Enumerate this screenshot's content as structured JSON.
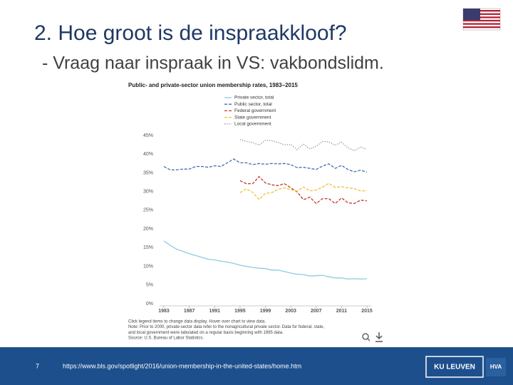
{
  "slide": {
    "title": "2. Hoe groot is de inspraakkloof?",
    "subtitle": " - Vraag naar inspraak in VS: vakbondslidm.",
    "page_number": "7",
    "url": "https://www.bls.gov/spotlight/2016/union-membership-in-the-united-states/home.htm",
    "logo": "KU LEUVEN",
    "logo2": "HVA"
  },
  "chart_data": {
    "type": "line",
    "title": "Public- and private-sector union membership rates, 1983–2015",
    "notes": [
      "Click legend items to change data display. Hover over chart to view data.",
      "Note: Prior to 2000, private-sector data refer to the nonagricultural private sector. Data for federal, state,",
      "and local government were tabulated on a regular basis beginning with 1995 data.",
      "Source: U.S. Bureau of Labor Statistics."
    ],
    "x": [
      1983,
      1984,
      1985,
      1986,
      1987,
      1988,
      1989,
      1990,
      1991,
      1992,
      1993,
      1994,
      1995,
      1996,
      1997,
      1998,
      1999,
      2000,
      2001,
      2002,
      2003,
      2004,
      2005,
      2006,
      2007,
      2008,
      2009,
      2010,
      2011,
      2012,
      2013,
      2014,
      2015
    ],
    "xlim": [
      1983,
      2015
    ],
    "xticks": [
      1983,
      1987,
      1991,
      1995,
      1999,
      2003,
      2007,
      2011,
      2015
    ],
    "ylim": [
      0,
      45
    ],
    "yticks": [
      {
        "value": 0,
        "label": "0%"
      },
      {
        "value": 5,
        "label": "5%"
      },
      {
        "value": 10,
        "label": "10%"
      },
      {
        "value": 15,
        "label": "15%"
      },
      {
        "value": 20,
        "label": "20%"
      },
      {
        "value": 25,
        "label": "25%"
      },
      {
        "value": 30,
        "label": "30%"
      },
      {
        "value": 35,
        "label": "35%"
      },
      {
        "value": 40,
        "label": "40%"
      },
      {
        "value": 45,
        "label": "45%"
      }
    ],
    "grid": false,
    "series": [
      {
        "name": "Private sector, total",
        "color": "#8ccbe3",
        "style": "solid",
        "values": [
          16.8,
          15.6,
          14.6,
          14.0,
          13.4,
          12.9,
          12.4,
          11.9,
          11.7,
          11.4,
          11.1,
          10.8,
          10.3,
          10.0,
          9.7,
          9.5,
          9.4,
          9.0,
          9.0,
          8.6,
          8.2,
          7.9,
          7.8,
          7.4,
          7.5,
          7.6,
          7.2,
          6.9,
          6.9,
          6.6,
          6.7,
          6.6,
          6.7
        ]
      },
      {
        "name": "Public sector, total",
        "color": "#3d6fae",
        "style": "dashed",
        "values": [
          36.7,
          35.8,
          35.8,
          36.0,
          36.0,
          36.7,
          36.7,
          36.5,
          36.9,
          36.7,
          37.7,
          38.7,
          37.7,
          37.7,
          37.2,
          37.5,
          37.3,
          37.5,
          37.4,
          37.5,
          37.2,
          36.4,
          36.5,
          36.2,
          35.9,
          36.8,
          37.4,
          36.2,
          37.0,
          35.9,
          35.3,
          35.7,
          35.2
        ]
      },
      {
        "name": "Federal government",
        "color": "#c0392b",
        "style": "dashed",
        "values": [
          null,
          null,
          null,
          null,
          null,
          null,
          null,
          null,
          null,
          null,
          null,
          null,
          32.9,
          32.1,
          32.1,
          34.0,
          32.3,
          31.8,
          31.6,
          32.1,
          31.0,
          29.9,
          27.8,
          28.5,
          26.8,
          28.1,
          28.1,
          26.8,
          28.3,
          27.0,
          26.8,
          27.7,
          27.5
        ]
      },
      {
        "name": "State government",
        "color": "#efc03a",
        "style": "dashed",
        "values": [
          null,
          null,
          null,
          null,
          null,
          null,
          null,
          null,
          null,
          null,
          null,
          null,
          29.7,
          30.7,
          29.8,
          27.9,
          29.5,
          29.7,
          30.6,
          31.0,
          30.5,
          30.1,
          31.2,
          30.2,
          30.4,
          31.2,
          32.2,
          31.1,
          31.3,
          31.0,
          30.8,
          30.2,
          30.2
        ]
      },
      {
        "name": "Local government",
        "color": "#8a8a8a",
        "style": "dotted",
        "values": [
          null,
          null,
          null,
          null,
          null,
          null,
          null,
          null,
          null,
          null,
          null,
          null,
          43.9,
          43.4,
          43.1,
          42.4,
          43.7,
          43.6,
          43.1,
          42.5,
          42.6,
          41.2,
          42.7,
          41.4,
          42.1,
          43.4,
          43.3,
          42.4,
          43.2,
          41.7,
          40.9,
          41.9,
          41.3
        ]
      }
    ]
  }
}
